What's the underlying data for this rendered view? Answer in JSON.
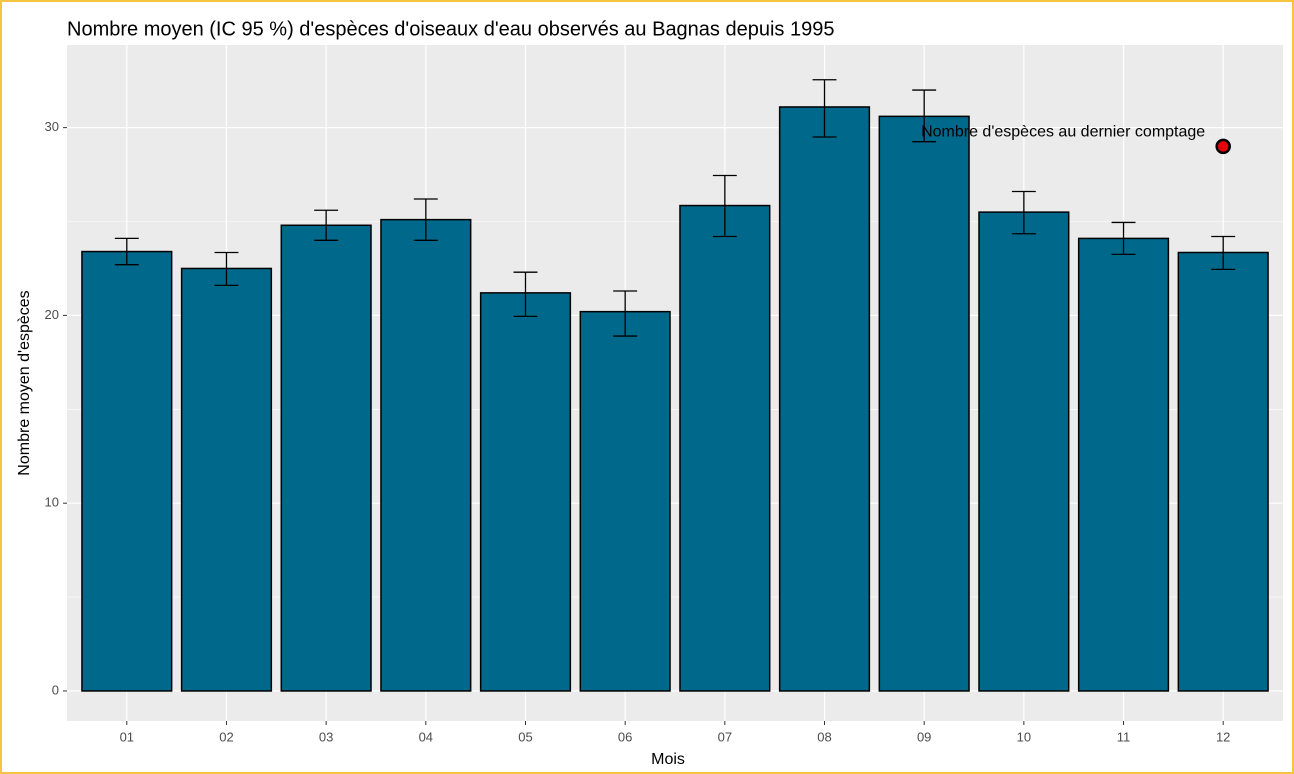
{
  "chart_data": {
    "type": "bar",
    "title": "Nombre moyen (IC 95 %) d'espèces d'oiseaux d'eau observés au Bagnas depuis 1995",
    "x_label": "Mois",
    "y_label": "Nombre moyen d'espèces",
    "categories": [
      "01",
      "02",
      "03",
      "04",
      "05",
      "06",
      "07",
      "08",
      "09",
      "10",
      "11",
      "12"
    ],
    "values": [
      23.4,
      22.5,
      24.8,
      25.1,
      21.2,
      20.2,
      25.85,
      31.1,
      30.6,
      25.5,
      24.1,
      23.35
    ],
    "ci_low": [
      22.7,
      21.6,
      24.0,
      24.0,
      19.95,
      18.9,
      24.2,
      29.5,
      29.25,
      24.35,
      23.25,
      22.45
    ],
    "ci_high": [
      24.1,
      23.35,
      25.6,
      26.2,
      22.3,
      21.3,
      27.45,
      32.55,
      32.0,
      26.6,
      24.95,
      24.2
    ],
    "color": "#00688b",
    "ylim": [
      -1.6,
      34.4
    ],
    "yticks": [
      0,
      10,
      20,
      30
    ],
    "minor_yticks": [
      5,
      15,
      25
    ],
    "grid": true,
    "point": {
      "category": "12",
      "value": 29,
      "color": "#e8000b",
      "label": "Nombre d'espèces au dernier comptage"
    }
  }
}
